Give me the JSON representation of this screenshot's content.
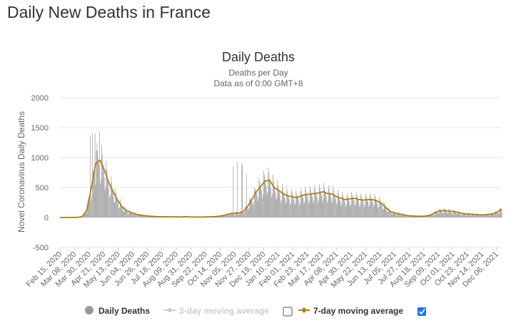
{
  "page": {
    "title": "Daily New Deaths in France"
  },
  "colors": {
    "bar": "#999999",
    "avg7": "#b07d17",
    "avg3": "#cccccc",
    "grid": "#e6e6e6",
    "checkbox_checked": "#1a73e8"
  },
  "chart_data": {
    "type": "bar",
    "title": "Daily Deaths",
    "subtitle": "Deaths per Day",
    "note": "Data as of 0:00 GMT+8",
    "ylabel": "Novel Coronavirus Daily Deaths",
    "xlabel": "",
    "ylim": [
      -500,
      2000
    ],
    "yticks": [
      2000,
      1500,
      1000,
      500,
      0,
      -500
    ],
    "x_range": [
      "2020-02-15",
      "2021-12-14"
    ],
    "x_tick_labels": [
      "Feb 15, 2020",
      "Mar 08, 2020",
      "Mar 30, 2020",
      "Apr 21, 2020",
      "May 13, 2020",
      "Jun 04, 2020",
      "Jun 26, 2020",
      "Jul 18, 2020",
      "Aug 09, 2020",
      "Aug 31, 2020",
      "Sep 22, 2020",
      "Oct 14, 2020",
      "Nov 05, 2020",
      "Nov 27, 2020",
      "Dec 19, 2020",
      "Jan 10, 2021",
      "Feb 01, 2021",
      "Feb 23, 2021",
      "Mar 17, 2021",
      "Apr 08, 2021",
      "Apr 30, 2021",
      "May 22, 2021",
      "Jun 13, 2021",
      "Jul 05, 2021",
      "Jul 27, 2021",
      "Aug 18, 2021",
      "Sep 09, 2021",
      "Oct 01, 2021",
      "Oct 23, 2021",
      "Nov 14, 2021",
      "Dec 06, 2021"
    ],
    "series": [
      {
        "name": "Daily Deaths",
        "kind": "bar",
        "weekly_avg": [
          0,
          0,
          0,
          0,
          2,
          15,
          120,
          480,
          900,
          960,
          780,
          570,
          420,
          280,
          170,
          110,
          80,
          55,
          40,
          30,
          22,
          18,
          14,
          12,
          12,
          10,
          10,
          9,
          14,
          10,
          8,
          7,
          8,
          10,
          12,
          16,
          25,
          40,
          60,
          70,
          75,
          90,
          180,
          300,
          430,
          520,
          610,
          620,
          500,
          450,
          400,
          360,
          350,
          330,
          360,
          380,
          390,
          400,
          410,
          430,
          400,
          390,
          350,
          320,
          300,
          310,
          320,
          300,
          290,
          300,
          300,
          280,
          240,
          170,
          100,
          75,
          60,
          45,
          30,
          25,
          20,
          20,
          25,
          40,
          80,
          110,
          115,
          110,
          100,
          90,
          70,
          60,
          55,
          50,
          45,
          45,
          50,
          60,
          90,
          140
        ],
        "spikes": [
          {
            "date": "2020-04-01",
            "value": 1355
          },
          {
            "date": "2020-04-04",
            "value": 1420
          },
          {
            "date": "2020-04-08",
            "value": 1410
          },
          {
            "date": "2020-04-15",
            "value": 1438
          },
          {
            "date": "2020-04-10",
            "value": 1120
          },
          {
            "date": "2020-11-03",
            "value": 854
          },
          {
            "date": "2020-11-09",
            "value": 932
          },
          {
            "date": "2020-11-16",
            "value": 898
          },
          {
            "date": "2020-11-17",
            "value": 868
          },
          {
            "date": "2020-11-23",
            "value": 720
          }
        ]
      },
      {
        "name": "3-day moving average",
        "kind": "line",
        "visible": false
      },
      {
        "name": "7-day moving average",
        "kind": "line",
        "visible": true
      }
    ]
  },
  "legend": {
    "daily": "Daily Deaths",
    "avg3": "3-day moving average",
    "avg7": "7-day moving average",
    "avg3_checked": false,
    "avg7_checked": true
  }
}
